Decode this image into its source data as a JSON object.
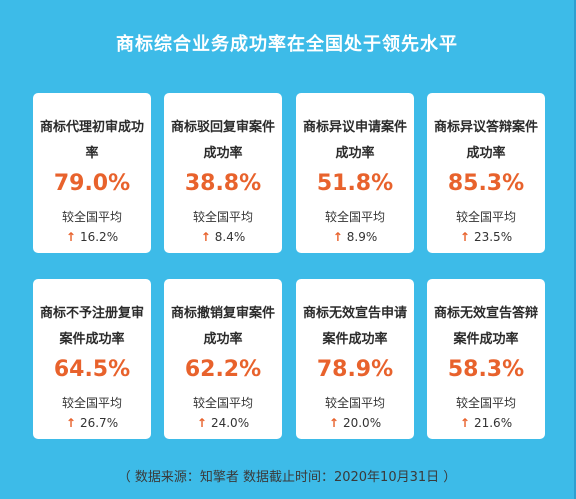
{
  "title": "商标综合业务成功率在全国处于领先水平",
  "cards": [
    {
      "title": "商标代理初审成功率",
      "value": "79.0%",
      "compare": "较全国平均",
      "delta": "16.2%"
    },
    {
      "title": "商标驳回复审案件成功率",
      "value": "38.8%",
      "compare": "较全国平均",
      "delta": "8.4%"
    },
    {
      "title": "商标异议申请案件成功率",
      "value": "51.8%",
      "compare": "较全国平均",
      "delta": "8.9%"
    },
    {
      "title": "商标异议答辩案件成功率",
      "value": "85.3%",
      "compare": "较全国平均",
      "delta": "23.5%"
    },
    {
      "title": "商标不予注册复审案件成功率",
      "value": "64.5%",
      "compare": "较全国平均",
      "delta": "26.7%"
    },
    {
      "title": "商标撤销复审案件成功率",
      "value": "62.2%",
      "compare": "较全国平均",
      "delta": "24.0%"
    },
    {
      "title": "商标无效宣告申请案件成功率",
      "value": "78.9%",
      "compare": "较全国平均",
      "delta": "20.0%"
    },
    {
      "title": "商标无效宣告答辩案件成功率",
      "value": "58.3%",
      "compare": "较全国平均",
      "delta": "21.6%"
    }
  ],
  "footer": "（ 数据来源：知擎者      数据截止时间：2020年10月31日 ）",
  "colors": {
    "background": "#3dbbe8",
    "value": "#e8622c",
    "card": "#ffffff"
  },
  "icons": {
    "delta": "arrow-up-icon"
  }
}
